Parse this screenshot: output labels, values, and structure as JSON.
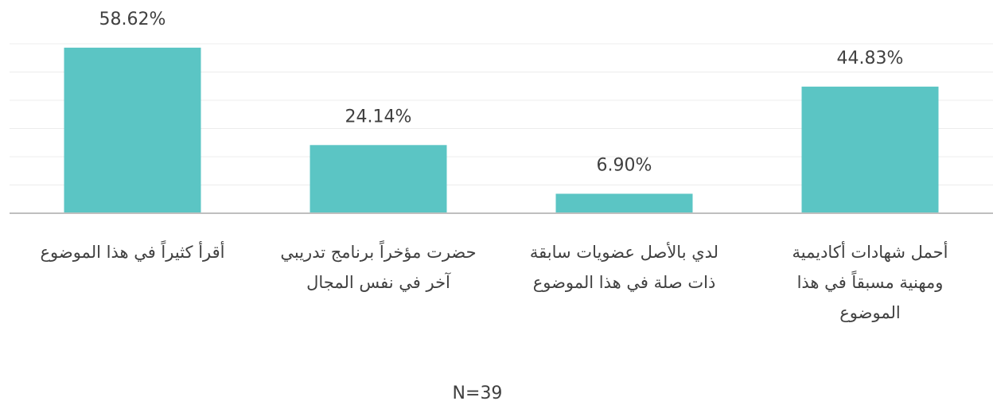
{
  "chart_data": {
    "type": "bar",
    "categories": [
      "أقرأ كثيراً في هذا الموضوع",
      "حضرت مؤخراً برنامج تدريبي آخر في نفس المجال",
      "لدي بالأصل عضويات سابقة ذات صلة في هذا الموضوع",
      "أحمل شهادات أكاديمية ومهنية مسبقاً في هذا الموضوع"
    ],
    "values": [
      58.62,
      24.14,
      6.9,
      44.83
    ],
    "value_labels": [
      "58.62%",
      "24.14%",
      "6.90%",
      "44.83%"
    ],
    "color": "#5bc5c4",
    "ylim": [
      0,
      60
    ],
    "yticks": [
      0,
      10,
      20,
      30,
      40,
      50,
      60
    ],
    "grid": true,
    "annotation": "N=39"
  }
}
